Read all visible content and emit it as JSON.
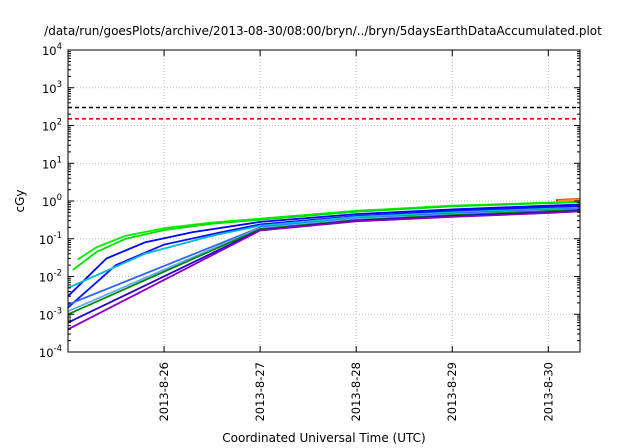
{
  "chart_data": {
    "type": "line",
    "title": "/data/run/goesPlots/archive/2013-08-30/08:00/bryn/../bryn/5daysEarthDataAccumulated.plot",
    "xlabel": "Coordinated Universal Time (UTC)",
    "ylabel": "cGy",
    "x_unit": "days",
    "xlim": [
      25.0,
      30.33
    ],
    "ylim_exponent": [
      -4,
      4
    ],
    "log_y": true,
    "grid": true,
    "x_ticks": [
      {
        "value": 26,
        "label": "2013-8-26"
      },
      {
        "value": 27,
        "label": "2013-8-27"
      },
      {
        "value": 28,
        "label": "2013-8-28"
      },
      {
        "value": 29,
        "label": "2013-8-29"
      },
      {
        "value": 30,
        "label": "2013-8-30"
      }
    ],
    "y_ticks": [
      {
        "exp": -4,
        "base": "10",
        "sup": "-4"
      },
      {
        "exp": -3,
        "base": "10",
        "sup": "-3"
      },
      {
        "exp": -2,
        "base": "10",
        "sup": "-2"
      },
      {
        "exp": -1,
        "base": "10",
        "sup": "-1"
      },
      {
        "exp": 0,
        "base": "10",
        "sup": "0"
      },
      {
        "exp": 1,
        "base": "10",
        "sup": "1"
      },
      {
        "exp": 2,
        "base": "10",
        "sup": "2"
      },
      {
        "exp": 3,
        "base": "10",
        "sup": "3"
      },
      {
        "exp": 4,
        "base": "10",
        "sup": "4"
      }
    ],
    "thresholds": [
      {
        "value": 300,
        "color": "#000000",
        "dash": true
      },
      {
        "value": 150,
        "color": "#e00000",
        "dash": true
      }
    ],
    "series": [
      {
        "color": "#00ee00",
        "points": [
          [
            25.1,
            0.028
          ],
          [
            25.3,
            0.06
          ],
          [
            25.6,
            0.12
          ],
          [
            26.0,
            0.19
          ],
          [
            26.5,
            0.27
          ],
          [
            27.0,
            0.34
          ],
          [
            28.0,
            0.55
          ],
          [
            29.0,
            0.75
          ],
          [
            30.0,
            0.9
          ],
          [
            30.33,
            0.96
          ]
        ]
      },
      {
        "color": "#00dd00",
        "points": [
          [
            25.05,
            0.015
          ],
          [
            25.3,
            0.045
          ],
          [
            25.6,
            0.1
          ],
          [
            26.0,
            0.17
          ],
          [
            26.5,
            0.25
          ],
          [
            27.0,
            0.32
          ],
          [
            28.0,
            0.52
          ],
          [
            29.0,
            0.72
          ],
          [
            30.0,
            0.88
          ],
          [
            30.33,
            0.93
          ]
        ]
      },
      {
        "color": "#0000ff",
        "points": [
          [
            25.0,
            0.003
          ],
          [
            25.4,
            0.03
          ],
          [
            25.8,
            0.08
          ],
          [
            26.3,
            0.15
          ],
          [
            27.0,
            0.28
          ],
          [
            28.0,
            0.45
          ],
          [
            29.0,
            0.6
          ],
          [
            30.0,
            0.75
          ],
          [
            30.33,
            0.8
          ]
        ]
      },
      {
        "color": "#1010ff",
        "points": [
          [
            25.0,
            0.0015
          ],
          [
            25.5,
            0.02
          ],
          [
            26.0,
            0.07
          ],
          [
            26.6,
            0.15
          ],
          [
            27.0,
            0.24
          ],
          [
            28.0,
            0.4
          ],
          [
            29.0,
            0.55
          ],
          [
            30.0,
            0.68
          ],
          [
            30.33,
            0.72
          ]
        ]
      },
      {
        "color": "#00bbcc",
        "points": [
          [
            25.0,
            0.005
          ],
          [
            25.8,
            0.04
          ],
          [
            26.5,
            0.12
          ],
          [
            27.0,
            0.22
          ],
          [
            28.0,
            0.38
          ],
          [
            29.0,
            0.5
          ],
          [
            30.0,
            0.62
          ],
          [
            30.33,
            0.66
          ]
        ]
      },
      {
        "color": "#3366ff",
        "points": [
          [
            25.0,
            0.0018
          ],
          [
            27.0,
            0.2
          ],
          [
            28.0,
            0.34
          ],
          [
            29.0,
            0.46
          ],
          [
            30.0,
            0.58
          ],
          [
            30.33,
            0.62
          ]
        ]
      },
      {
        "color": "#66aaff",
        "points": [
          [
            25.0,
            0.0012
          ],
          [
            27.0,
            0.19
          ],
          [
            28.0,
            0.33
          ],
          [
            29.0,
            0.44
          ],
          [
            30.0,
            0.56
          ],
          [
            30.33,
            0.6
          ]
        ]
      },
      {
        "color": "#008800",
        "points": [
          [
            25.0,
            0.001
          ],
          [
            27.0,
            0.18
          ],
          [
            28.0,
            0.31
          ],
          [
            29.0,
            0.42
          ],
          [
            30.0,
            0.54
          ],
          [
            30.33,
            0.58
          ]
        ]
      },
      {
        "color": "#2200cc",
        "points": [
          [
            25.0,
            0.0006
          ],
          [
            27.0,
            0.17
          ],
          [
            28.0,
            0.3
          ],
          [
            29.0,
            0.4
          ],
          [
            30.0,
            0.5
          ],
          [
            30.33,
            0.55
          ]
        ]
      },
      {
        "color": "#8800bb",
        "points": [
          [
            25.0,
            0.0004
          ],
          [
            27.0,
            0.165
          ],
          [
            28.0,
            0.29
          ],
          [
            29.0,
            0.38
          ],
          [
            30.0,
            0.48
          ],
          [
            30.33,
            0.53
          ]
        ]
      },
      {
        "color": "#dd2200",
        "points": [
          [
            30.08,
            1.05
          ],
          [
            30.2,
            1.1
          ],
          [
            30.33,
            1.12
          ]
        ]
      },
      {
        "color": "#ff9900",
        "points": [
          [
            30.1,
            1.02
          ],
          [
            30.2,
            1.05
          ],
          [
            30.33,
            1.07
          ]
        ]
      }
    ]
  }
}
